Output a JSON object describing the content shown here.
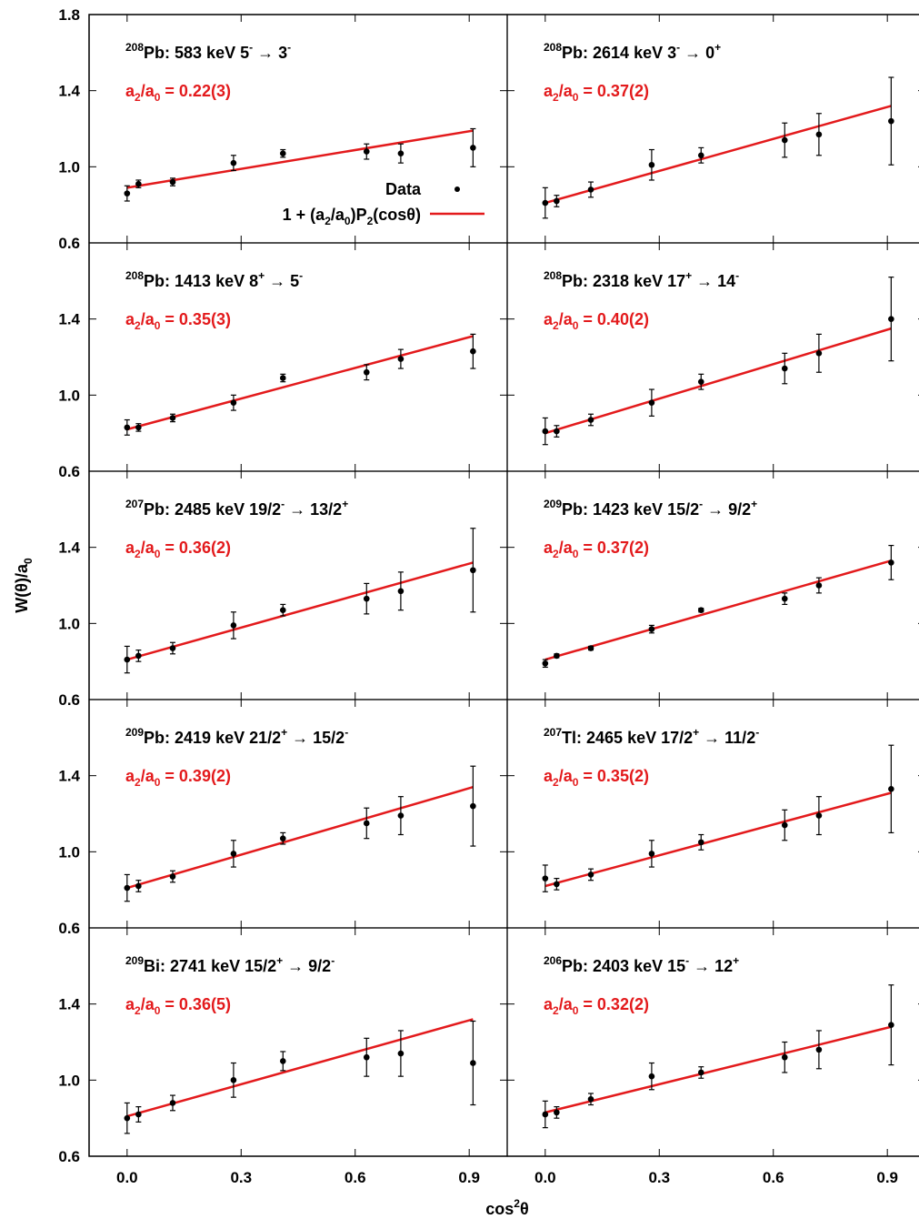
{
  "figure": {
    "ylabel": "W(θ)/a0",
    "xlabel": "cos2θ",
    "legend": {
      "data_label": "Data",
      "fit_label": "1 + (a2/a0)P2(cosθ)"
    },
    "colors": {
      "data": "#000000",
      "fit": "#e31a1c",
      "ratio_text": "#e31a1c"
    }
  },
  "chart_data": [
    {
      "type": "scatter",
      "title": "208Pb: 583 keV 5- → 3-",
      "title_parts": {
        "mass": "208",
        "rest": "Pb:  583 keV  5",
        "s1": "-",
        "arrow": " → 3",
        "s2": "-"
      },
      "ratio_label": "a2/a0 = 0.22(3)",
      "ratio_value": "0.22(3)",
      "xlim": [
        -0.1,
        1.0
      ],
      "ylim": [
        0.6,
        1.8
      ],
      "xticks": [
        0.0,
        0.3,
        0.6,
        0.9
      ],
      "yticks": [
        0.6,
        1.0,
        1.4,
        1.8
      ],
      "series": [
        {
          "name": "Data",
          "x": [
            0.0,
            0.03,
            0.12,
            0.28,
            0.41,
            0.63,
            0.72,
            0.91
          ],
          "y": [
            0.86,
            0.91,
            0.92,
            1.02,
            1.07,
            1.08,
            1.07,
            1.1
          ],
          "err": [
            0.04,
            0.02,
            0.02,
            0.04,
            0.02,
            0.04,
            0.05,
            0.1
          ]
        },
        {
          "name": "1 + (a2/a0)P2(cosθ)",
          "x": [
            0.0,
            0.91
          ],
          "y": [
            0.89,
            1.19
          ]
        }
      ]
    },
    {
      "type": "scatter",
      "title": "208Pb: 2614 keV 3- → 0+",
      "title_parts": {
        "mass": "208",
        "rest": "Pb:  2614 keV  3",
        "s1": "-",
        "arrow": " → 0",
        "s2": "+"
      },
      "ratio_label": "a2/a0 = 0.37(2)",
      "ratio_value": "0.37(2)",
      "xlim": [
        -0.1,
        1.0
      ],
      "ylim": [
        0.6,
        1.8
      ],
      "xticks": [
        0.0,
        0.3,
        0.6,
        0.9
      ],
      "yticks": [
        0.6,
        1.0,
        1.4,
        1.8
      ],
      "series": [
        {
          "name": "Data",
          "x": [
            0.0,
            0.03,
            0.12,
            0.28,
            0.41,
            0.63,
            0.72,
            0.91
          ],
          "y": [
            0.81,
            0.82,
            0.88,
            1.01,
            1.06,
            1.14,
            1.17,
            1.24
          ],
          "err": [
            0.08,
            0.03,
            0.04,
            0.08,
            0.04,
            0.09,
            0.11,
            0.23
          ]
        },
        {
          "name": "1 + (a2/a0)P2(cosθ)",
          "x": [
            0.0,
            0.91
          ],
          "y": [
            0.81,
            1.32
          ]
        }
      ]
    },
    {
      "type": "scatter",
      "title": "208Pb: 1413 keV 8+ → 5-",
      "title_parts": {
        "mass": "208",
        "rest": "Pb:  1413 keV  8",
        "s1": "+",
        "arrow": " → 5",
        "s2": "-"
      },
      "ratio_label": "a2/a0 = 0.35(3)",
      "ratio_value": "0.35(3)",
      "xlim": [
        -0.1,
        1.0
      ],
      "ylim": [
        0.6,
        1.8
      ],
      "xticks": [
        0.0,
        0.3,
        0.6,
        0.9
      ],
      "yticks": [
        0.6,
        1.0,
        1.4,
        1.8
      ],
      "series": [
        {
          "name": "Data",
          "x": [
            0.0,
            0.03,
            0.12,
            0.28,
            0.41,
            0.63,
            0.72,
            0.91
          ],
          "y": [
            0.83,
            0.83,
            0.88,
            0.96,
            1.09,
            1.12,
            1.19,
            1.23
          ],
          "err": [
            0.04,
            0.02,
            0.02,
            0.04,
            0.02,
            0.04,
            0.05,
            0.09
          ]
        },
        {
          "name": "1 + (a2/a0)P2(cosθ)",
          "x": [
            0.0,
            0.91
          ],
          "y": [
            0.82,
            1.31
          ]
        }
      ]
    },
    {
      "type": "scatter",
      "title": "208Pb: 2318 keV 17+ → 14-",
      "title_parts": {
        "mass": "208",
        "rest": "Pb:  2318 keV  17",
        "s1": "+",
        "arrow": " → 14",
        "s2": "-"
      },
      "ratio_label": "a2/a0 = 0.40(2)",
      "ratio_value": "0.40(2)",
      "xlim": [
        -0.1,
        1.0
      ],
      "ylim": [
        0.6,
        1.8
      ],
      "xticks": [
        0.0,
        0.3,
        0.6,
        0.9
      ],
      "yticks": [
        0.6,
        1.0,
        1.4,
        1.8
      ],
      "series": [
        {
          "name": "Data",
          "x": [
            0.0,
            0.03,
            0.12,
            0.28,
            0.41,
            0.63,
            0.72,
            0.91
          ],
          "y": [
            0.81,
            0.81,
            0.87,
            0.96,
            1.07,
            1.14,
            1.22,
            1.4
          ],
          "err": [
            0.07,
            0.03,
            0.03,
            0.07,
            0.04,
            0.08,
            0.1,
            0.22
          ]
        },
        {
          "name": "1 + (a2/a0)P2(cosθ)",
          "x": [
            0.0,
            0.91
          ],
          "y": [
            0.8,
            1.35
          ]
        }
      ]
    },
    {
      "type": "scatter",
      "title": "207Pb: 2485 keV 19/2- → 13/2+",
      "title_parts": {
        "mass": "207",
        "rest": "Pb:  2485 keV  19/2",
        "s1": "-",
        "arrow": " → 13/2",
        "s2": "+"
      },
      "ratio_label": "a2/a0 = 0.36(2)",
      "ratio_value": "0.36(2)",
      "xlim": [
        -0.1,
        1.0
      ],
      "ylim": [
        0.6,
        1.8
      ],
      "xticks": [
        0.0,
        0.3,
        0.6,
        0.9
      ],
      "yticks": [
        0.6,
        1.0,
        1.4,
        1.8
      ],
      "series": [
        {
          "name": "Data",
          "x": [
            0.0,
            0.03,
            0.12,
            0.28,
            0.41,
            0.63,
            0.72,
            0.91
          ],
          "y": [
            0.81,
            0.83,
            0.87,
            0.99,
            1.07,
            1.13,
            1.17,
            1.28
          ],
          "err": [
            0.07,
            0.03,
            0.03,
            0.07,
            0.03,
            0.08,
            0.1,
            0.22
          ]
        },
        {
          "name": "1 + (a2/a0)P2(cosθ)",
          "x": [
            0.0,
            0.91
          ],
          "y": [
            0.81,
            1.32
          ]
        }
      ]
    },
    {
      "type": "scatter",
      "title": "209Pb: 1423 keV 15/2- → 9/2+",
      "title_parts": {
        "mass": "209",
        "rest": "Pb:  1423 keV  15/2",
        "s1": "-",
        "arrow": " → 9/2",
        "s2": "+"
      },
      "ratio_label": "a2/a0 = 0.37(2)",
      "ratio_value": "0.37(2)",
      "xlim": [
        -0.1,
        1.0
      ],
      "ylim": [
        0.6,
        1.8
      ],
      "xticks": [
        0.0,
        0.3,
        0.6,
        0.9
      ],
      "yticks": [
        0.6,
        1.0,
        1.4,
        1.8
      ],
      "series": [
        {
          "name": "Data",
          "x": [
            0.0,
            0.03,
            0.12,
            0.28,
            0.41,
            0.63,
            0.72,
            0.91
          ],
          "y": [
            0.79,
            0.83,
            0.87,
            0.97,
            1.07,
            1.13,
            1.2,
            1.32
          ],
          "err": [
            0.02,
            0.01,
            0.01,
            0.02,
            0.01,
            0.03,
            0.04,
            0.09
          ]
        },
        {
          "name": "1 + (a2/a0)P2(cosθ)",
          "x": [
            0.0,
            0.91
          ],
          "y": [
            0.81,
            1.33
          ]
        }
      ]
    },
    {
      "type": "scatter",
      "title": "209Pb: 2419 keV 21/2+ → 15/2-",
      "title_parts": {
        "mass": "209",
        "rest": "Pb:  2419 keV  21/2",
        "s1": "+",
        "arrow": " → 15/2",
        "s2": "-"
      },
      "ratio_label": "a2/a0 = 0.39(2)",
      "ratio_value": "0.39(2)",
      "xlim": [
        -0.1,
        1.0
      ],
      "ylim": [
        0.6,
        1.8
      ],
      "xticks": [
        0.0,
        0.3,
        0.6,
        0.9
      ],
      "yticks": [
        0.6,
        1.0,
        1.4,
        1.8
      ],
      "series": [
        {
          "name": "Data",
          "x": [
            0.0,
            0.03,
            0.12,
            0.28,
            0.41,
            0.63,
            0.72,
            0.91
          ],
          "y": [
            0.81,
            0.82,
            0.87,
            0.99,
            1.07,
            1.15,
            1.19,
            1.24
          ],
          "err": [
            0.07,
            0.03,
            0.03,
            0.07,
            0.03,
            0.08,
            0.1,
            0.21
          ]
        },
        {
          "name": "1 + (a2/a0)P2(cosθ)",
          "x": [
            0.0,
            0.91
          ],
          "y": [
            0.81,
            1.34
          ]
        }
      ]
    },
    {
      "type": "scatter",
      "title": "207Tl: 2465 keV 17/2+ → 11/2-",
      "title_parts": {
        "mass": "207",
        "rest": "Tl:  2465 keV  17/2",
        "s1": "+",
        "arrow": " → 11/2",
        "s2": "-"
      },
      "ratio_label": "a2/a0 = 0.35(2)",
      "ratio_value": "0.35(2)",
      "xlim": [
        -0.1,
        1.0
      ],
      "ylim": [
        0.6,
        1.8
      ],
      "xticks": [
        0.0,
        0.3,
        0.6,
        0.9
      ],
      "yticks": [
        0.6,
        1.0,
        1.4,
        1.8
      ],
      "series": [
        {
          "name": "Data",
          "x": [
            0.0,
            0.03,
            0.12,
            0.28,
            0.41,
            0.63,
            0.72,
            0.91
          ],
          "y": [
            0.86,
            0.83,
            0.88,
            0.99,
            1.05,
            1.14,
            1.19,
            1.33
          ],
          "err": [
            0.07,
            0.03,
            0.03,
            0.07,
            0.04,
            0.08,
            0.1,
            0.23
          ]
        },
        {
          "name": "1 + (a2/a0)P2(cosθ)",
          "x": [
            0.0,
            0.91
          ],
          "y": [
            0.82,
            1.31
          ]
        }
      ]
    },
    {
      "type": "scatter",
      "title": "209Bi: 2741 keV 15/2+ → 9/2-",
      "title_parts": {
        "mass": "209",
        "rest": "Bi:  2741 keV  15/2",
        "s1": "+",
        "arrow": " → 9/2",
        "s2": "-"
      },
      "ratio_label": "a2/a0 = 0.36(5)",
      "ratio_value": "0.36(5)",
      "xlim": [
        -0.1,
        1.0
      ],
      "ylim": [
        0.6,
        1.8
      ],
      "xticks": [
        0.0,
        0.3,
        0.6,
        0.9
      ],
      "yticks": [
        0.6,
        1.0,
        1.4,
        1.8
      ],
      "series": [
        {
          "name": "Data",
          "x": [
            0.0,
            0.03,
            0.12,
            0.28,
            0.41,
            0.63,
            0.72,
            0.91
          ],
          "y": [
            0.8,
            0.82,
            0.88,
            1.0,
            1.1,
            1.12,
            1.14,
            1.09
          ],
          "err": [
            0.08,
            0.04,
            0.04,
            0.09,
            0.05,
            0.1,
            0.12,
            0.22
          ]
        },
        {
          "name": "1 + (a2/a0)P2(cosθ)",
          "x": [
            0.0,
            0.91
          ],
          "y": [
            0.81,
            1.32
          ]
        }
      ]
    },
    {
      "type": "scatter",
      "title": "206Pb: 2403 keV 15- → 12+",
      "title_parts": {
        "mass": "206",
        "rest": "Pb:  2403 keV  15",
        "s1": "-",
        "arrow": " → 12",
        "s2": "+"
      },
      "ratio_label": "a2/a0 = 0.32(2)",
      "ratio_value": "0.32(2)",
      "xlim": [
        -0.1,
        1.0
      ],
      "ylim": [
        0.6,
        1.8
      ],
      "xticks": [
        0.0,
        0.3,
        0.6,
        0.9
      ],
      "yticks": [
        0.6,
        1.0,
        1.4,
        1.8
      ],
      "series": [
        {
          "name": "Data",
          "x": [
            0.0,
            0.03,
            0.12,
            0.28,
            0.41,
            0.63,
            0.72,
            0.91
          ],
          "y": [
            0.82,
            0.83,
            0.9,
            1.02,
            1.04,
            1.12,
            1.16,
            1.29
          ],
          "err": [
            0.07,
            0.03,
            0.03,
            0.07,
            0.03,
            0.08,
            0.1,
            0.21
          ]
        },
        {
          "name": "1 + (a2/a0)P2(cosθ)",
          "x": [
            0.0,
            0.91
          ],
          "y": [
            0.83,
            1.28
          ]
        }
      ]
    }
  ]
}
